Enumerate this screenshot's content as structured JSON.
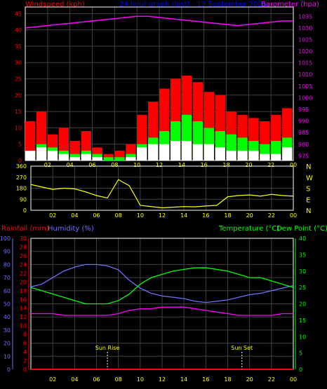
{
  "header": {
    "left_label": "Windspeed (kph)",
    "center_label": "24 hour graph (last) - 13 September 2025",
    "right_label": "Barometer (hpa)"
  },
  "colors": {
    "windspeed": "#ff0000",
    "gust_green": "#00ff00",
    "avg_white": "#ffffff",
    "barometer": "#ff00ff",
    "center_title": "#0000ff",
    "direction": "#ffff00",
    "rainfall": "#ff0000",
    "humidity": "#7070ff",
    "temperature": "#00ff00",
    "dewpoint": "#ff00ff",
    "axis_text": "#ffff00",
    "grid": "#404040"
  },
  "bottom_headers": {
    "rainfall_label": "Rainfall (mm)",
    "humidity_label": "Humidity (%)",
    "temperature_label": "Temperature (°C)",
    "dewpoint_label": "Dew Point (°C)"
  },
  "compass_letters": [
    "N",
    "W",
    "S",
    "E",
    "N"
  ],
  "annotations": {
    "sun_rise": "Sun Rise",
    "sun_set": "Sun Set"
  },
  "chart_data": [
    {
      "type": "line",
      "name": "wind-barometer",
      "x_ticks": [
        "02",
        "04",
        "06",
        "08",
        "10",
        "12",
        "14",
        "16",
        "18",
        "20",
        "22",
        "00"
      ],
      "y_left_ticks": [
        0,
        5,
        10,
        15,
        20,
        25,
        30,
        35,
        40,
        45
      ],
      "y_left_lim": [
        0,
        47
      ],
      "y_right_ticks": [
        975,
        980,
        985,
        990,
        995,
        1000,
        1005,
        1010,
        1015,
        1020,
        1025,
        1030,
        1035
      ],
      "y_right_lim": [
        973,
        1039
      ],
      "hours": [
        0,
        1,
        2,
        3,
        4,
        5,
        6,
        7,
        8,
        9,
        10,
        11,
        12,
        13,
        14,
        15,
        16,
        17,
        18,
        19,
        20,
        21,
        22,
        23,
        24
      ],
      "series": [
        {
          "label": "windspeed",
          "values": [
            12,
            15,
            8,
            10,
            6,
            9,
            4,
            2,
            3,
            5,
            14,
            18,
            22,
            25,
            26,
            24,
            21,
            20,
            15,
            14,
            13,
            12,
            14,
            16,
            20
          ]
        },
        {
          "label": "gust_green",
          "values": [
            3,
            5,
            4,
            3,
            2,
            3,
            2,
            1,
            1,
            2,
            5,
            7,
            9,
            12,
            14,
            12,
            10,
            9,
            8,
            7,
            6,
            5,
            6,
            7,
            8
          ]
        },
        {
          "label": "avg_white",
          "values": [
            3,
            4,
            3,
            2,
            1,
            2,
            1,
            0,
            0,
            1,
            4,
            5,
            5,
            6,
            6,
            5,
            5,
            4,
            3,
            3,
            3,
            2,
            2,
            4,
            5
          ]
        },
        {
          "label": "barometer",
          "values": [
            1030,
            1030.5,
            1031,
            1031.5,
            1032,
            1032.5,
            1033,
            1033.5,
            1034,
            1034.5,
            1035,
            1035,
            1034.5,
            1034,
            1033.5,
            1033,
            1032.5,
            1032,
            1031.5,
            1031,
            1031.5,
            1032,
            1032.5,
            1033,
            1033
          ]
        }
      ]
    },
    {
      "type": "line",
      "name": "wind-direction",
      "x_ticks": [
        "02",
        "04",
        "06",
        "08",
        "10",
        "12",
        "14",
        "16",
        "18",
        "20",
        "22",
        "00"
      ],
      "y_ticks": [
        0,
        90,
        180,
        270,
        360
      ],
      "y_lim": [
        0,
        360
      ],
      "hours": [
        0,
        1,
        2,
        3,
        4,
        5,
        6,
        7,
        8,
        9,
        10,
        11,
        12,
        13,
        14,
        15,
        16,
        17,
        18,
        19,
        20,
        21,
        22,
        23,
        24
      ],
      "series": [
        {
          "label": "direction",
          "values": [
            210,
            190,
            170,
            180,
            175,
            150,
            120,
            100,
            250,
            200,
            40,
            30,
            20,
            25,
            30,
            28,
            35,
            40,
            110,
            120,
            125,
            115,
            130,
            120,
            115
          ]
        }
      ]
    },
    {
      "type": "line",
      "name": "humidity-temperature",
      "x_ticks": [
        "02",
        "04",
        "06",
        "08",
        "10",
        "12",
        "14",
        "16",
        "18",
        "20",
        "22",
        "00"
      ],
      "y_left_outer_ticks": [
        0,
        10,
        20,
        30,
        40,
        50,
        60,
        70,
        80,
        90,
        100
      ],
      "y_left_inner_ticks": [
        0,
        2,
        4,
        6,
        8,
        10,
        12,
        14,
        16,
        18,
        20,
        22,
        24,
        26,
        28,
        30
      ],
      "y_right_ticks": [
        0,
        5,
        10,
        15,
        20,
        25,
        30,
        35,
        40
      ],
      "y_humidity_lim": [
        0,
        100
      ],
      "y_temp_lim": [
        0,
        40
      ],
      "hours": [
        0,
        1,
        2,
        3,
        4,
        5,
        6,
        7,
        8,
        9,
        10,
        11,
        12,
        13,
        14,
        15,
        16,
        17,
        18,
        19,
        20,
        21,
        22,
        23,
        24
      ],
      "series": [
        {
          "label": "humidity",
          "values": [
            63,
            65,
            70,
            75,
            78,
            80,
            80,
            79,
            76,
            68,
            62,
            58,
            56,
            55,
            54,
            52,
            51,
            52,
            53,
            55,
            57,
            58,
            60,
            62,
            64
          ]
        },
        {
          "label": "temperature",
          "values": [
            25,
            24,
            23,
            22,
            21,
            20,
            20,
            20,
            21,
            23,
            26,
            28,
            29,
            30,
            30.5,
            31,
            31,
            30.5,
            30,
            29,
            28,
            28,
            27,
            26,
            25
          ]
        },
        {
          "label": "dewpoint",
          "values": [
            17,
            17,
            17,
            16.5,
            16.5,
            16.5,
            16.5,
            16.5,
            17,
            18,
            18.5,
            18.5,
            19,
            19,
            19,
            18.5,
            18,
            17.5,
            17,
            16.5,
            16.5,
            16.5,
            16.5,
            17,
            17
          ]
        },
        {
          "label": "rainfall",
          "values": [
            0,
            0,
            0,
            0,
            0,
            0,
            0,
            0,
            0,
            0,
            0,
            0,
            0,
            0,
            0,
            0,
            0,
            0,
            0,
            0,
            0,
            0,
            0,
            0,
            0
          ]
        }
      ],
      "events": [
        {
          "label": "Sun Rise",
          "hour": 7
        },
        {
          "label": "Sun Set",
          "hour": 19.3
        }
      ]
    }
  ]
}
